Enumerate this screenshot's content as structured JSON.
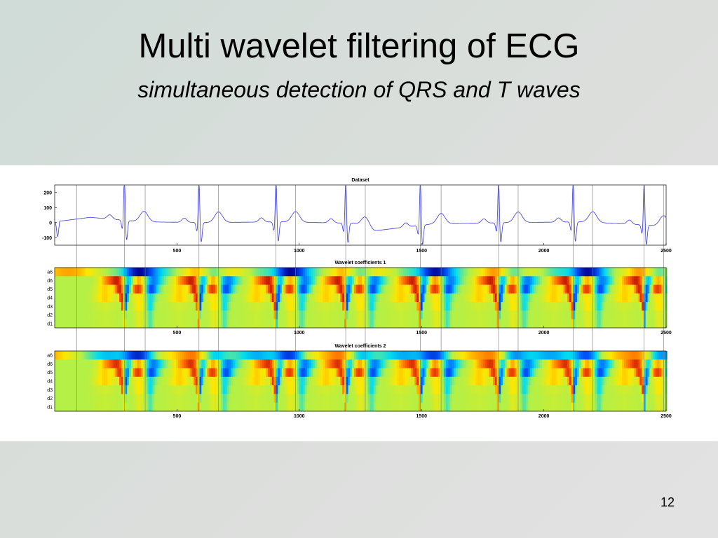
{
  "slide": {
    "title": "Multi wavelet filtering of ECG",
    "subtitle": "simultaneous detection of QRS and T waves",
    "number": "12"
  },
  "colors": {
    "ecg_line": "#3b3bd6",
    "low": "#0000aa",
    "mid": "#b8f040",
    "high": "#b00000",
    "marker_line": "#7a7a7a"
  },
  "chart_data": [
    {
      "type": "line",
      "title": "Dataset",
      "xlim": [
        0,
        2500
      ],
      "ylim": [
        -150,
        250
      ],
      "x_ticks": [
        500,
        1000,
        1500,
        2000,
        2500
      ],
      "y_ticks": [
        200,
        100,
        0,
        -100
      ],
      "r_peaks": [
        285,
        590,
        905,
        1190,
        1495,
        1815,
        2120,
        2410
      ],
      "t_peaks": [
        365,
        670,
        985,
        1270,
        1580,
        1895,
        2200,
        2490
      ],
      "baseline_segments": [
        [
          0,
          30
        ],
        [
          145,
          60
        ],
        [
          360,
          30
        ],
        [
          620,
          25
        ],
        [
          930,
          30
        ],
        [
          1225,
          20
        ],
        [
          1305,
          -30
        ],
        [
          1540,
          15
        ],
        [
          1860,
          25
        ],
        [
          2165,
          30
        ],
        [
          2400,
          10
        ],
        [
          2500,
          0
        ]
      ],
      "grid": false
    },
    {
      "type": "heatmap",
      "title": "Wavelet coefficients 1",
      "xlim": [
        0,
        2500
      ],
      "x_ticks": [
        500,
        1000,
        1500,
        2000,
        2500
      ],
      "rows": [
        "a6",
        "d6",
        "d5",
        "d4",
        "d3",
        "d2",
        "d1"
      ]
    },
    {
      "type": "heatmap",
      "title": "Wavelet coefficients 2",
      "xlim": [
        0,
        2500
      ],
      "x_ticks": [
        500,
        1000,
        1500,
        2000,
        2500
      ],
      "rows": [
        "a6",
        "d6",
        "d5",
        "d4",
        "d3",
        "d2",
        "d1"
      ]
    }
  ],
  "markers": {
    "x_values": [
      90,
      285,
      370,
      590,
      670,
      905,
      985,
      1190,
      1270,
      1495,
      1580,
      1815,
      1895,
      2120,
      2200,
      2410,
      2490
    ]
  }
}
